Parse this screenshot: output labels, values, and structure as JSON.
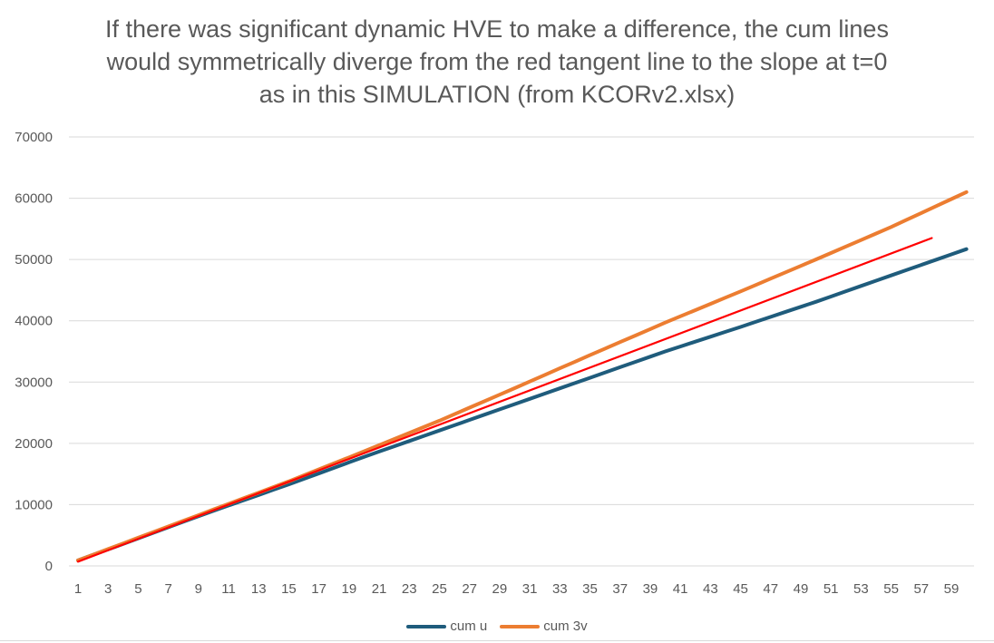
{
  "chart_data": {
    "type": "line",
    "title": [
      "If there was significant dynamic HVE to make a difference, the cum lines",
      "would symmetrically diverge from the red tangent line to the slope at t=0",
      "as in this SIMULATION (from KCORv2.xlsx)"
    ],
    "xlabel": "",
    "ylabel": "",
    "ylim": [
      0,
      70000
    ],
    "yticks": [
      0,
      10000,
      20000,
      30000,
      40000,
      50000,
      60000,
      70000
    ],
    "x_range": [
      1,
      60
    ],
    "xticks": [
      1,
      3,
      5,
      7,
      9,
      11,
      13,
      15,
      17,
      19,
      21,
      23,
      25,
      27,
      29,
      31,
      33,
      35,
      37,
      39,
      41,
      43,
      45,
      47,
      49,
      51,
      53,
      55,
      57,
      59
    ],
    "grid": true,
    "legend_position": "bottom",
    "series": [
      {
        "name": "cum u",
        "color": "#1f5c7c",
        "x": [
          1,
          5,
          10,
          15,
          20,
          25,
          30,
          35,
          40,
          45,
          50,
          55,
          60
        ],
        "values": [
          900,
          4500,
          9000,
          13300,
          17800,
          22100,
          26400,
          30700,
          35000,
          39000,
          43100,
          47400,
          51700
        ]
      },
      {
        "name": "cum 3v",
        "color": "#ec7d31",
        "x": [
          1,
          5,
          10,
          15,
          20,
          25,
          30,
          35,
          40,
          45,
          50,
          55,
          60
        ],
        "values": [
          900,
          4600,
          9200,
          13800,
          18700,
          23700,
          29000,
          34400,
          39700,
          44800,
          50000,
          55300,
          61000
        ]
      },
      {
        "name": "red tangent line",
        "color": "#ff0000",
        "legend": false,
        "x": [
          1,
          57.7
        ],
        "values": [
          700,
          53500
        ]
      }
    ]
  },
  "legend": {
    "items": [
      {
        "label": "cum u",
        "color": "#1f5c7c"
      },
      {
        "label": "cum 3v",
        "color": "#ec7d31"
      }
    ]
  }
}
